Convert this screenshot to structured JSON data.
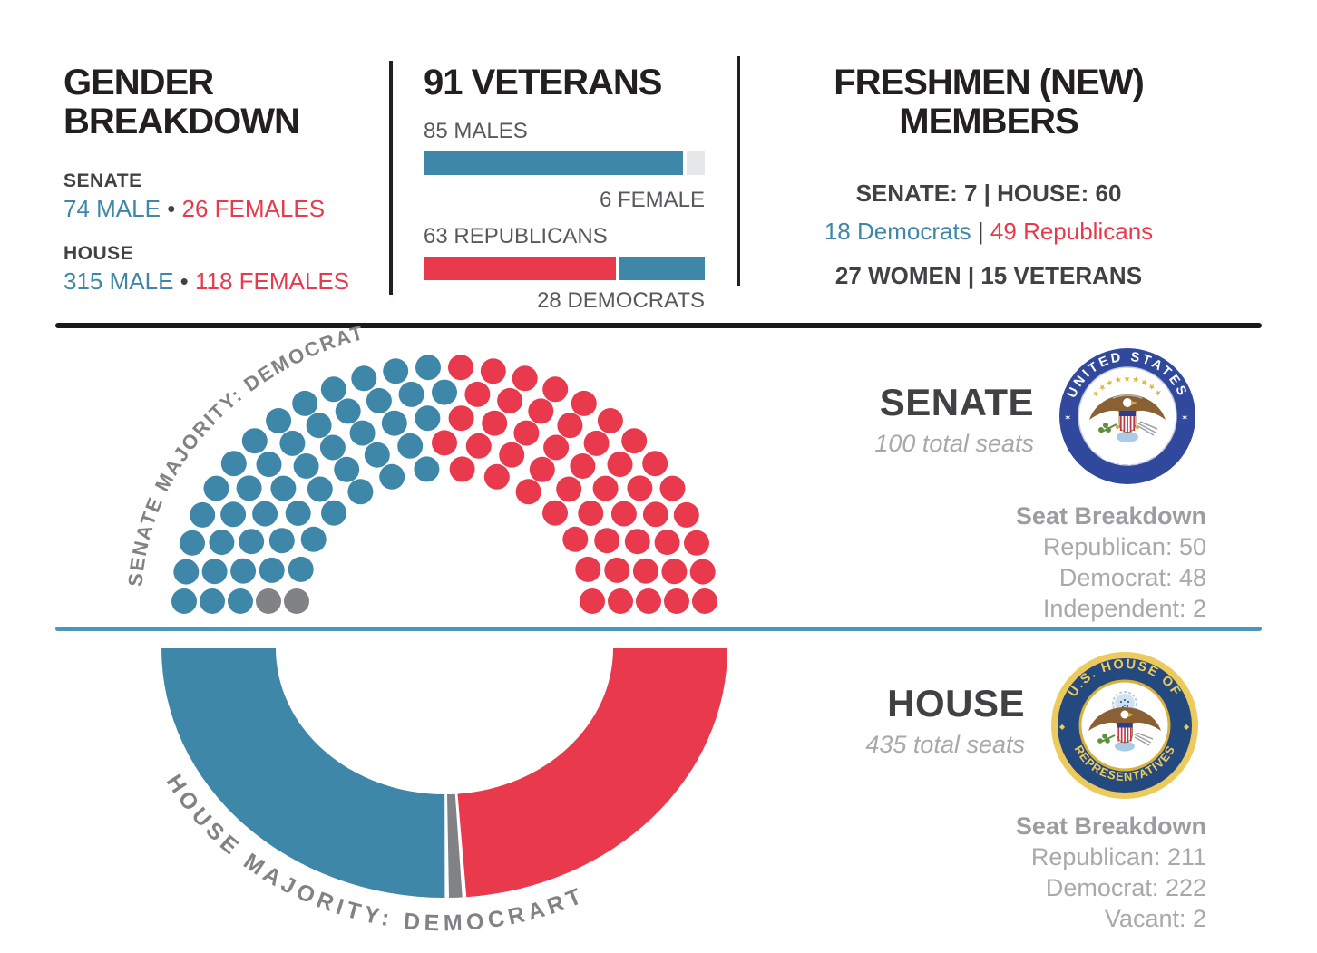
{
  "gender": {
    "title": "GENDER BREAKDOWN",
    "senate_label": "SENATE",
    "senate_male": "74 MALE",
    "senate_female": "26 FEMALES",
    "house_label": "HOUSE",
    "house_male": "315 MALE",
    "house_female": "118 FEMALES",
    "dot_separator": "•"
  },
  "veterans": {
    "title": "91 VETERANS",
    "males_label": "85 MALES",
    "female_label": "6 FEMALE",
    "republicans_label": "63 REPUBLICANS",
    "democrats_label": "28 DEMOCRATS"
  },
  "freshmen": {
    "title": "FRESHMEN (NEW) MEMBERS",
    "line1": "SENATE: 7  |  HOUSE: 60",
    "democrats": "18 Democrats",
    "pipe": "|",
    "republicans": "49 Republicans",
    "line3": "27 WOMEN | 15 VETERANS"
  },
  "senate": {
    "name": "SENATE",
    "total_label": "100 total seats",
    "majority_label": "SENATE MAJORITY: DEMOCRAT",
    "breakdown_title": "Seat Breakdown",
    "breakdown": [
      "Republican: 50",
      "Democrat: 48",
      "Independent: 2"
    ]
  },
  "house": {
    "name": "HOUSE",
    "total_label": "435 total seats",
    "majority_label": "HOUSE MAJORITY: DEMOCRART",
    "breakdown_title": "Seat Breakdown",
    "breakdown": [
      "Republican: 211",
      "Democrat: 222",
      "Vacant: 2"
    ]
  },
  "seals": {
    "senate": {
      "top": "UNITED STATES",
      "bottom": "SENATE"
    },
    "house": {
      "top": "U.S. HOUSE OF",
      "bottom": "REPRESENTATIVES"
    }
  },
  "colors": {
    "democrat_blue": "#3e87a9",
    "republican_red": "#e83a4c",
    "neutral_gray": "#808285",
    "bar_lightgray": "#e6e7e8",
    "text_dark": "#414042",
    "text_mid": "#58595b",
    "text_light": "#a7a9ac",
    "ink_black": "#231f20",
    "divider_blue": "#4a97ba"
  },
  "chart_data": [
    {
      "type": "pie",
      "name": "senate-composition",
      "layout": "hemicycle-dots",
      "title": "SENATE",
      "total_seats": 100,
      "rows": [
        14,
        17,
        20,
        23,
        26
      ],
      "slices": [
        {
          "label": "Independent",
          "value": 2,
          "color": "#808285"
        },
        {
          "label": "Democrat",
          "value": 48,
          "color": "#3e87a9"
        },
        {
          "label": "Republican",
          "value": 50,
          "color": "#e83a4c"
        }
      ],
      "note": "slices listed in seat-fill order from left edge",
      "annotation": "SENATE MAJORITY: DEMOCRAT"
    },
    {
      "type": "pie",
      "name": "house-composition",
      "layout": "half-donut",
      "title": "HOUSE",
      "total_seats": 435,
      "slices": [
        {
          "label": "Democrat",
          "value": 222,
          "color": "#3e87a9"
        },
        {
          "label": "Vacant",
          "value": 2,
          "color": "#808285"
        },
        {
          "label": "Republican",
          "value": 211,
          "color": "#e83a4c"
        }
      ],
      "note": "slices listed left to right",
      "annotation": "HOUSE MAJORITY: DEMOCRART"
    },
    {
      "type": "bar",
      "name": "veterans-by-gender",
      "categories": [
        "Males",
        "Females"
      ],
      "values": [
        85,
        6
      ],
      "total": 91,
      "colors": [
        "#3e87a9",
        "#e6e7e8"
      ]
    },
    {
      "type": "bar",
      "name": "veterans-by-party",
      "categories": [
        "Republicans",
        "Democrats"
      ],
      "values": [
        63,
        28
      ],
      "total": 91,
      "colors": [
        "#e83a4c",
        "#3e87a9"
      ]
    }
  ]
}
